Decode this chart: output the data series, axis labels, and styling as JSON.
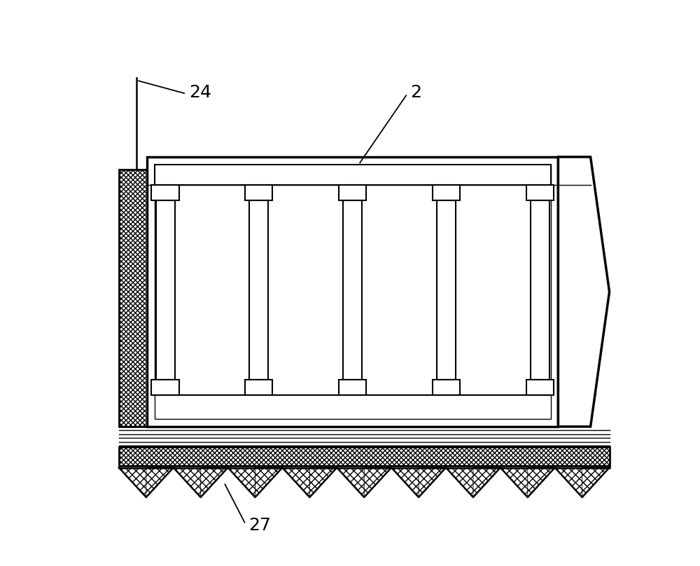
{
  "fig_width": 10.0,
  "fig_height": 8.08,
  "bg_color": "#ffffff",
  "label_24": "24",
  "label_2": "2",
  "label_27": "27",
  "line_color": "#000000",
  "n_modules": 5,
  "lw_main": 2.0,
  "lw_thick": 2.5,
  "lw_thin": 1.2
}
